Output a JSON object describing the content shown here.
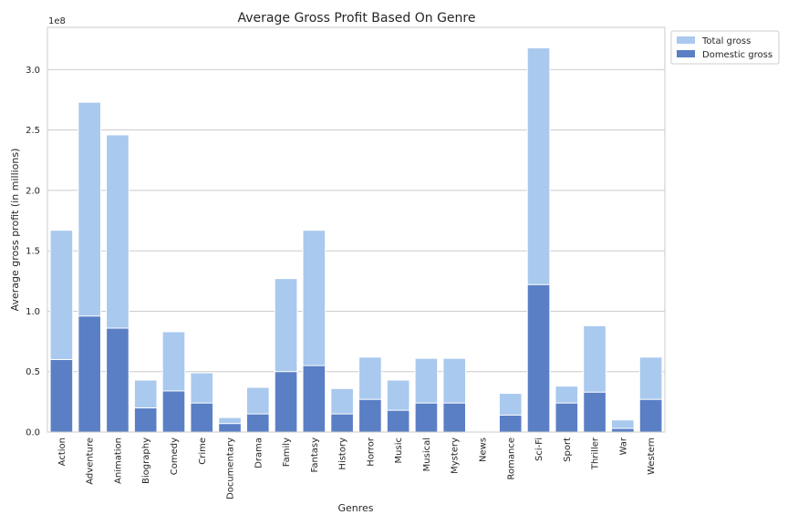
{
  "chart_data": {
    "type": "bar",
    "title": "Average Gross Profit Based On Genre",
    "xlabel": "Genres",
    "ylabel": "Average gross profit (in millions)",
    "y_offset_label": "1e8",
    "ylim": [
      0,
      335000000
    ],
    "y_ticks": [
      0,
      50000000,
      100000000,
      150000000,
      200000000,
      250000000,
      300000000
    ],
    "y_tick_labels": [
      "0.0",
      "0.5",
      "1.0",
      "1.5",
      "2.0",
      "2.5",
      "3.0"
    ],
    "grid": "horizontal",
    "legend_position": "upper-right-outside",
    "categories": [
      "Action",
      "Adventure",
      "Animation",
      "Biography",
      "Comedy",
      "Crime",
      "Documentary",
      "Drama",
      "Family",
      "Fantasy",
      "History",
      "Horror",
      "Music",
      "Musical",
      "Mystery",
      "News",
      "Romance",
      "Sci-Fi",
      "Sport",
      "Thriller",
      "War",
      "Western"
    ],
    "series": [
      {
        "name": "Total gross",
        "color": "#a9c9ee",
        "values": [
          167000000,
          273000000,
          246000000,
          43000000,
          83000000,
          49000000,
          12000000,
          37000000,
          127000000,
          167000000,
          36000000,
          62000000,
          43000000,
          61000000,
          61000000,
          1000000,
          32000000,
          318000000,
          38000000,
          88000000,
          10000000,
          62000000
        ]
      },
      {
        "name": "Domestic gross",
        "color": "#5a7fc5",
        "values": [
          60000000,
          96000000,
          86000000,
          20000000,
          34000000,
          24000000,
          7000000,
          15000000,
          50000000,
          55000000,
          15000000,
          27000000,
          18000000,
          24000000,
          24000000,
          500000,
          14000000,
          122000000,
          24000000,
          33000000,
          3000000,
          27000000
        ]
      }
    ]
  }
}
